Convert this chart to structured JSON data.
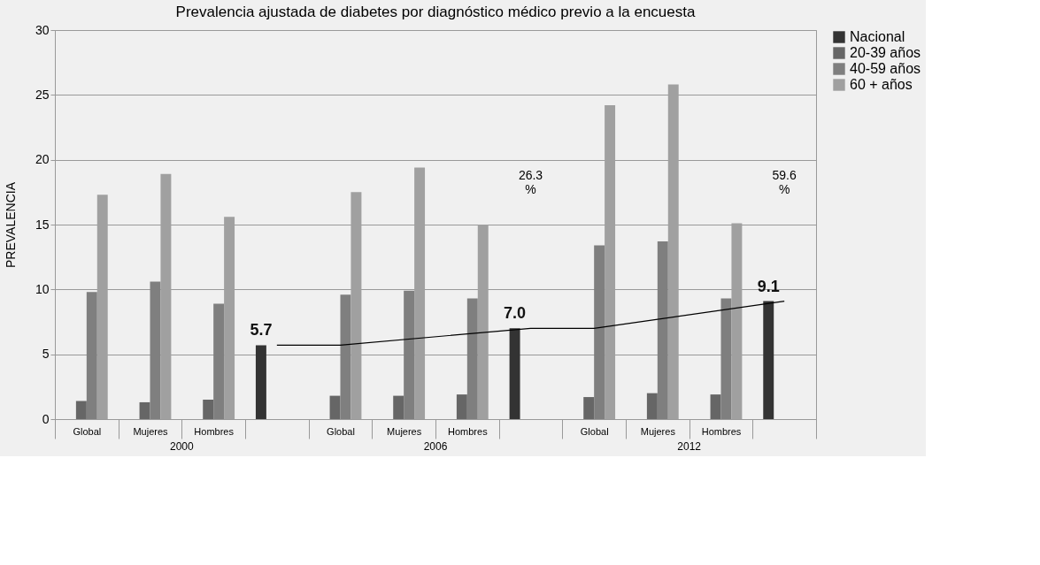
{
  "chart_data": {
    "type": "bar",
    "title": "Prevalencia ajustada de diabetes por diagnóstico médico previo a la encuesta",
    "ylabel": "PREVALENCIA",
    "categories": [
      "Global",
      "Mujeres",
      "Hombres",
      null,
      "Global",
      "Mujeres",
      "Hombres",
      null,
      "Global",
      "Mujeres",
      "Hombres",
      null
    ],
    "series": [
      {
        "name": "Nacional",
        "color": "#333333",
        "values": [
          null,
          null,
          null,
          5.7,
          null,
          null,
          null,
          7.0,
          null,
          null,
          null,
          9.1
        ],
        "value_labels": [
          null,
          null,
          null,
          "5.7",
          null,
          null,
          null,
          "7.0",
          null,
          null,
          null,
          "9.1"
        ]
      },
      {
        "name": "20-39 años",
        "color": "#666666",
        "values": [
          1.4,
          1.3,
          1.5,
          null,
          1.8,
          1.8,
          1.9,
          null,
          1.7,
          2.0,
          1.9,
          null
        ]
      },
      {
        "name": "40-59 años",
        "color": "#7f7f7f",
        "values": [
          9.8,
          10.6,
          8.9,
          null,
          9.6,
          9.9,
          9.3,
          null,
          13.4,
          13.7,
          9.3,
          null
        ]
      },
      {
        "name": "60 + años",
        "color": "#a0a0a0",
        "values": [
          17.3,
          18.9,
          15.6,
          null,
          17.5,
          19.4,
          15.0,
          null,
          24.2,
          25.8,
          15.1,
          null
        ]
      },
      {
        "type": "line",
        "color": "#000000",
        "values": [
          null,
          null,
          null,
          5.7,
          5.7,
          null,
          null,
          7.0,
          7.0,
          null,
          null,
          9.1
        ]
      }
    ],
    "annotations": [
      "2000",
      "2006",
      "2012",
      "26.3 %",
      "59.6 %"
    ],
    "ylim": [
      0,
      30
    ],
    "yticks": [
      0,
      5,
      10,
      15,
      20,
      25,
      30
    ],
    "grid": "y",
    "legend": "right"
  }
}
